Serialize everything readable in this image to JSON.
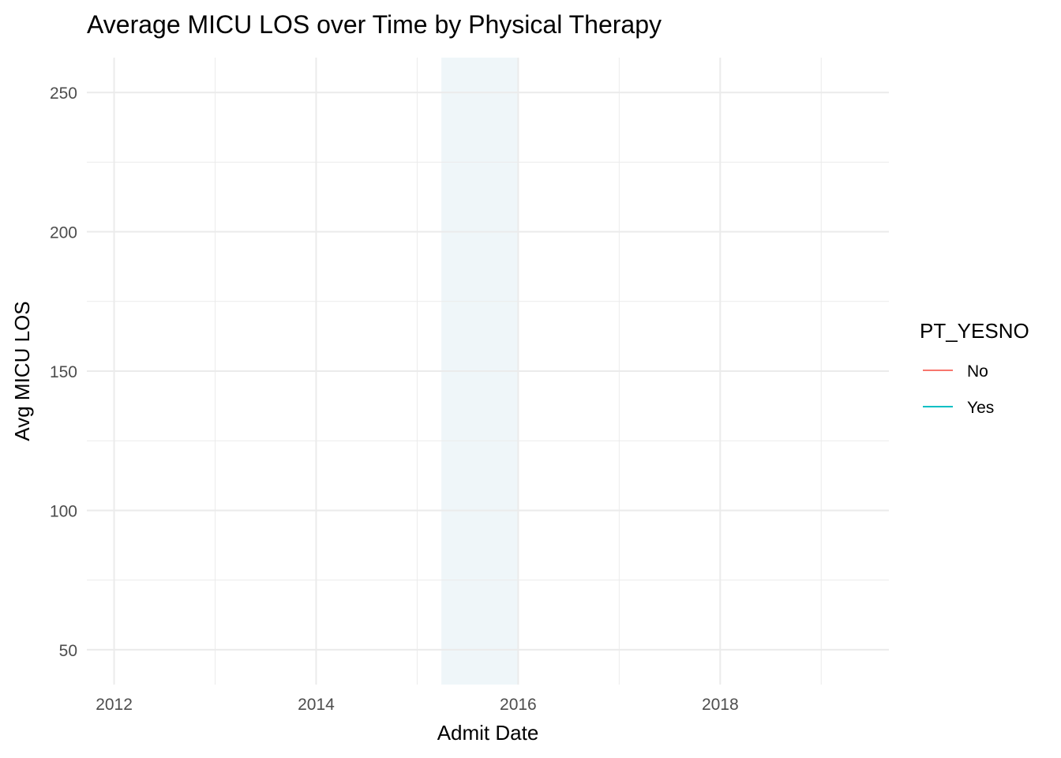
{
  "chart_data": {
    "type": "line",
    "title": "Average MICU LOS over Time by Physical Therapy",
    "xlabel": "Admit Date",
    "ylabel": "Avg MICU LOS",
    "xlim": [
      2011.73,
      2019.67
    ],
    "ylim": [
      37.5,
      262.5
    ],
    "x_ticks": [
      2012,
      2014,
      2016,
      2018
    ],
    "x_tick_labels": [
      "2012",
      "2014",
      "2016",
      "2018"
    ],
    "x_minor_ticks": [
      2013,
      2015,
      2017,
      2019
    ],
    "y_ticks": [
      50,
      100,
      150,
      200,
      250
    ],
    "y_tick_labels": [
      "50",
      "100",
      "150",
      "200",
      "250"
    ],
    "y_minor_ticks": [
      75,
      125,
      175,
      225
    ],
    "grid": true,
    "shaded_region": {
      "x_start": 2015.24,
      "x_end": 2016.0,
      "color": "#eff6f9"
    },
    "legend": {
      "title": "PT_YESNO",
      "position": "right",
      "entries": [
        {
          "label": "No",
          "color": "#F8766D"
        },
        {
          "label": "Yes",
          "color": "#00BFC4"
        }
      ]
    },
    "series": []
  }
}
